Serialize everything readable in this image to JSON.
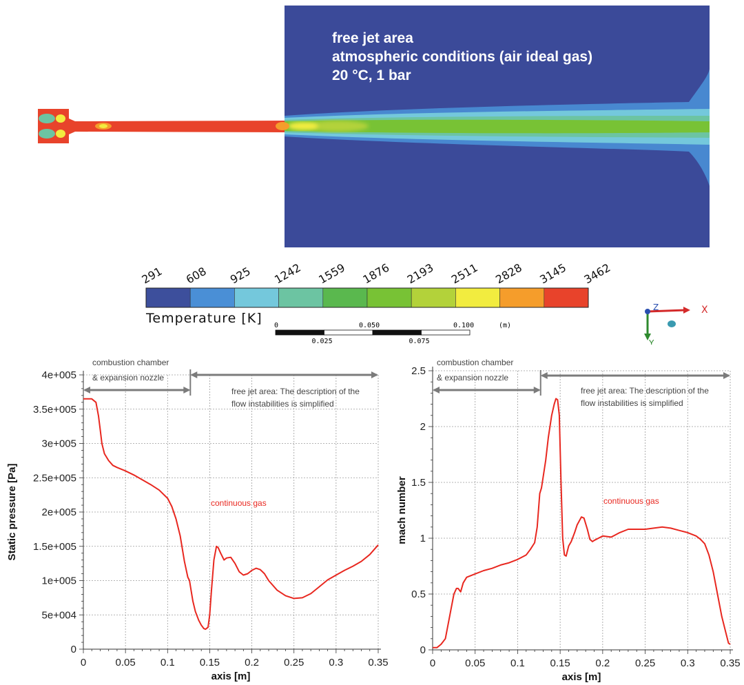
{
  "contour": {
    "annotation_lines": [
      "free jet area",
      "atmospheric conditions (air ideal gas)",
      "20 °C, 1 bar"
    ],
    "colorbar": {
      "ticks": [
        "291",
        "608",
        "925",
        "1242",
        "1559",
        "1876",
        "2193",
        "2511",
        "2828",
        "3145",
        "3462"
      ],
      "colors": [
        "#3d4f9c",
        "#4a8fd6",
        "#74c8dc",
        "#6cc4a2",
        "#5ab84e",
        "#78c235",
        "#b3d23a",
        "#f2ec3f",
        "#f59d2b",
        "#e8432b"
      ],
      "label": "Temperature [K]"
    },
    "scalebar": {
      "top_labels": [
        "0",
        "0.050",
        "0.100",
        "(m)"
      ],
      "bottom_labels": [
        "0.025",
        "0.075"
      ]
    },
    "triad": {
      "x": "X",
      "y": "Y",
      "z": "Z"
    },
    "colors": {
      "background_field": "#3b4a99",
      "hot_core": "#e8432b"
    }
  },
  "chart_data": [
    {
      "type": "line",
      "title": "",
      "xlabel": "axis [m]",
      "ylabel": "Static pressure [Pa]",
      "xlim": [
        0,
        0.35
      ],
      "ylim": [
        0,
        400000
      ],
      "xticks": [
        "0",
        "0.05",
        "0.1",
        "0.15",
        "0.2",
        "0.25",
        "0.3",
        "0.35"
      ],
      "yticks": [
        "0",
        "5e+004",
        "1e+005",
        "1.5e+005",
        "2e+005",
        "2.5e+005",
        "3e+005",
        "3.5e+005",
        "4e+005"
      ],
      "grid": true,
      "series_color": "#e8271f",
      "annotations": {
        "region1_line1": "combustion chamber",
        "region1_line2": "& expansion nozzle",
        "region2_line1": "free jet area: The description of the",
        "region2_line2": "flow instabilities is simplified",
        "curve_label": "continuous gas",
        "divider_x": 0.127
      },
      "series": [
        {
          "x": [
            0,
            0.005,
            0.01,
            0.015,
            0.018,
            0.02,
            0.022,
            0.025,
            0.03,
            0.035,
            0.04,
            0.05,
            0.06,
            0.07,
            0.08,
            0.09,
            0.1,
            0.105,
            0.11,
            0.115,
            0.12,
            0.124,
            0.126,
            0.128,
            0.13,
            0.133,
            0.137,
            0.14,
            0.143,
            0.145,
            0.148,
            0.15,
            0.152,
            0.155,
            0.158,
            0.16,
            0.163,
            0.167,
            0.17,
            0.175,
            0.18,
            0.185,
            0.19,
            0.195,
            0.2,
            0.205,
            0.21,
            0.215,
            0.22,
            0.23,
            0.24,
            0.25,
            0.26,
            0.27,
            0.28,
            0.29,
            0.3,
            0.31,
            0.32,
            0.33,
            0.34,
            0.345,
            0.35
          ],
          "y": [
            365000,
            365000,
            365000,
            360000,
            340000,
            320000,
            300000,
            285000,
            275000,
            268000,
            265000,
            260000,
            254000,
            247000,
            240000,
            232000,
            220000,
            208000,
            190000,
            165000,
            128000,
            105000,
            100000,
            85000,
            70000,
            55000,
            42000,
            35000,
            30000,
            29000,
            32000,
            50000,
            85000,
            130000,
            150000,
            148000,
            140000,
            130000,
            133000,
            134000,
            125000,
            113000,
            108000,
            110000,
            115000,
            118000,
            116000,
            110000,
            100000,
            86000,
            78000,
            74000,
            75000,
            81000,
            91000,
            101000,
            108000,
            115000,
            121000,
            128000,
            138000,
            145000,
            152000
          ]
        }
      ]
    },
    {
      "type": "line",
      "title": "",
      "xlabel": "axis [m]",
      "ylabel": "mach number",
      "xlim": [
        0,
        0.35
      ],
      "ylim": [
        0,
        2.5
      ],
      "xticks": [
        "0",
        "0.05",
        "0.1",
        "0.15",
        "0.2",
        "0.25",
        "0.3",
        "0.35"
      ],
      "yticks": [
        "0",
        "0.5",
        "1",
        "1.5",
        "2",
        "2.5"
      ],
      "grid": true,
      "series_color": "#e8271f",
      "annotations": {
        "region1_line1": "combustion chamber",
        "region1_line2": "& expansion nozzle",
        "region2_line1": "free jet area: The description of the",
        "region2_line2": "flow instabilities is simplified",
        "curve_label": "continuous gas",
        "divider_x": 0.127
      },
      "series": [
        {
          "x": [
            0,
            0.005,
            0.01,
            0.015,
            0.02,
            0.025,
            0.028,
            0.03,
            0.033,
            0.036,
            0.04,
            0.05,
            0.06,
            0.07,
            0.08,
            0.09,
            0.1,
            0.11,
            0.115,
            0.12,
            0.123,
            0.126,
            0.128,
            0.13,
            0.133,
            0.136,
            0.14,
            0.143,
            0.145,
            0.147,
            0.149,
            0.151,
            0.153,
            0.155,
            0.157,
            0.16,
            0.163,
            0.167,
            0.17,
            0.175,
            0.178,
            0.182,
            0.185,
            0.188,
            0.19,
            0.195,
            0.2,
            0.21,
            0.22,
            0.23,
            0.24,
            0.25,
            0.26,
            0.27,
            0.28,
            0.29,
            0.3,
            0.31,
            0.315,
            0.32,
            0.325,
            0.33,
            0.335,
            0.34,
            0.345,
            0.348,
            0.35
          ],
          "y": [
            0.02,
            0.02,
            0.05,
            0.1,
            0.3,
            0.5,
            0.55,
            0.55,
            0.52,
            0.6,
            0.65,
            0.68,
            0.71,
            0.73,
            0.76,
            0.78,
            0.81,
            0.85,
            0.9,
            0.96,
            1.1,
            1.4,
            1.45,
            1.55,
            1.7,
            1.9,
            2.1,
            2.2,
            2.25,
            2.24,
            2.1,
            1.5,
            1.0,
            0.85,
            0.84,
            0.93,
            0.97,
            1.05,
            1.12,
            1.19,
            1.18,
            1.08,
            0.99,
            0.97,
            0.98,
            1.0,
            1.02,
            1.01,
            1.05,
            1.08,
            1.08,
            1.08,
            1.09,
            1.1,
            1.09,
            1.07,
            1.05,
            1.02,
            0.99,
            0.95,
            0.85,
            0.7,
            0.5,
            0.3,
            0.15,
            0.06,
            0.05
          ]
        }
      ]
    }
  ]
}
